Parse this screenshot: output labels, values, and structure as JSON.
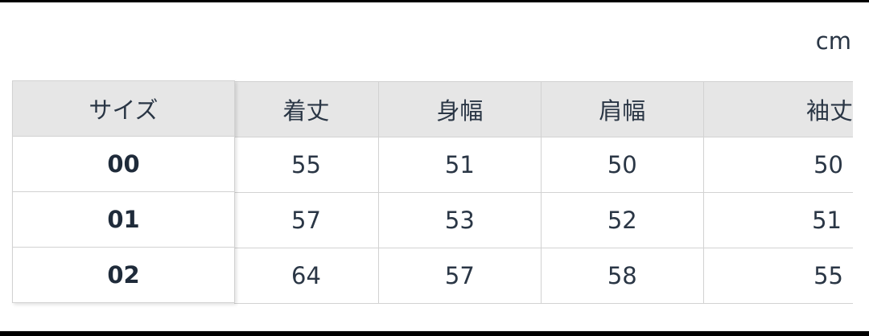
{
  "unit_label": "cm",
  "table": {
    "size_header": "サイズ",
    "columns": [
      "着丈",
      "身幅",
      "肩幅",
      "袖丈"
    ],
    "rows": [
      {
        "size": "00",
        "values": [
          "55",
          "51",
          "50",
          "50"
        ]
      },
      {
        "size": "01",
        "values": [
          "57",
          "53",
          "52",
          "51"
        ]
      },
      {
        "size": "02",
        "values": [
          "64",
          "57",
          "58",
          "55"
        ]
      }
    ]
  },
  "colors": {
    "header_bg": "#e6e6e6",
    "border": "#d2d2d2",
    "text": "#2a3645"
  }
}
